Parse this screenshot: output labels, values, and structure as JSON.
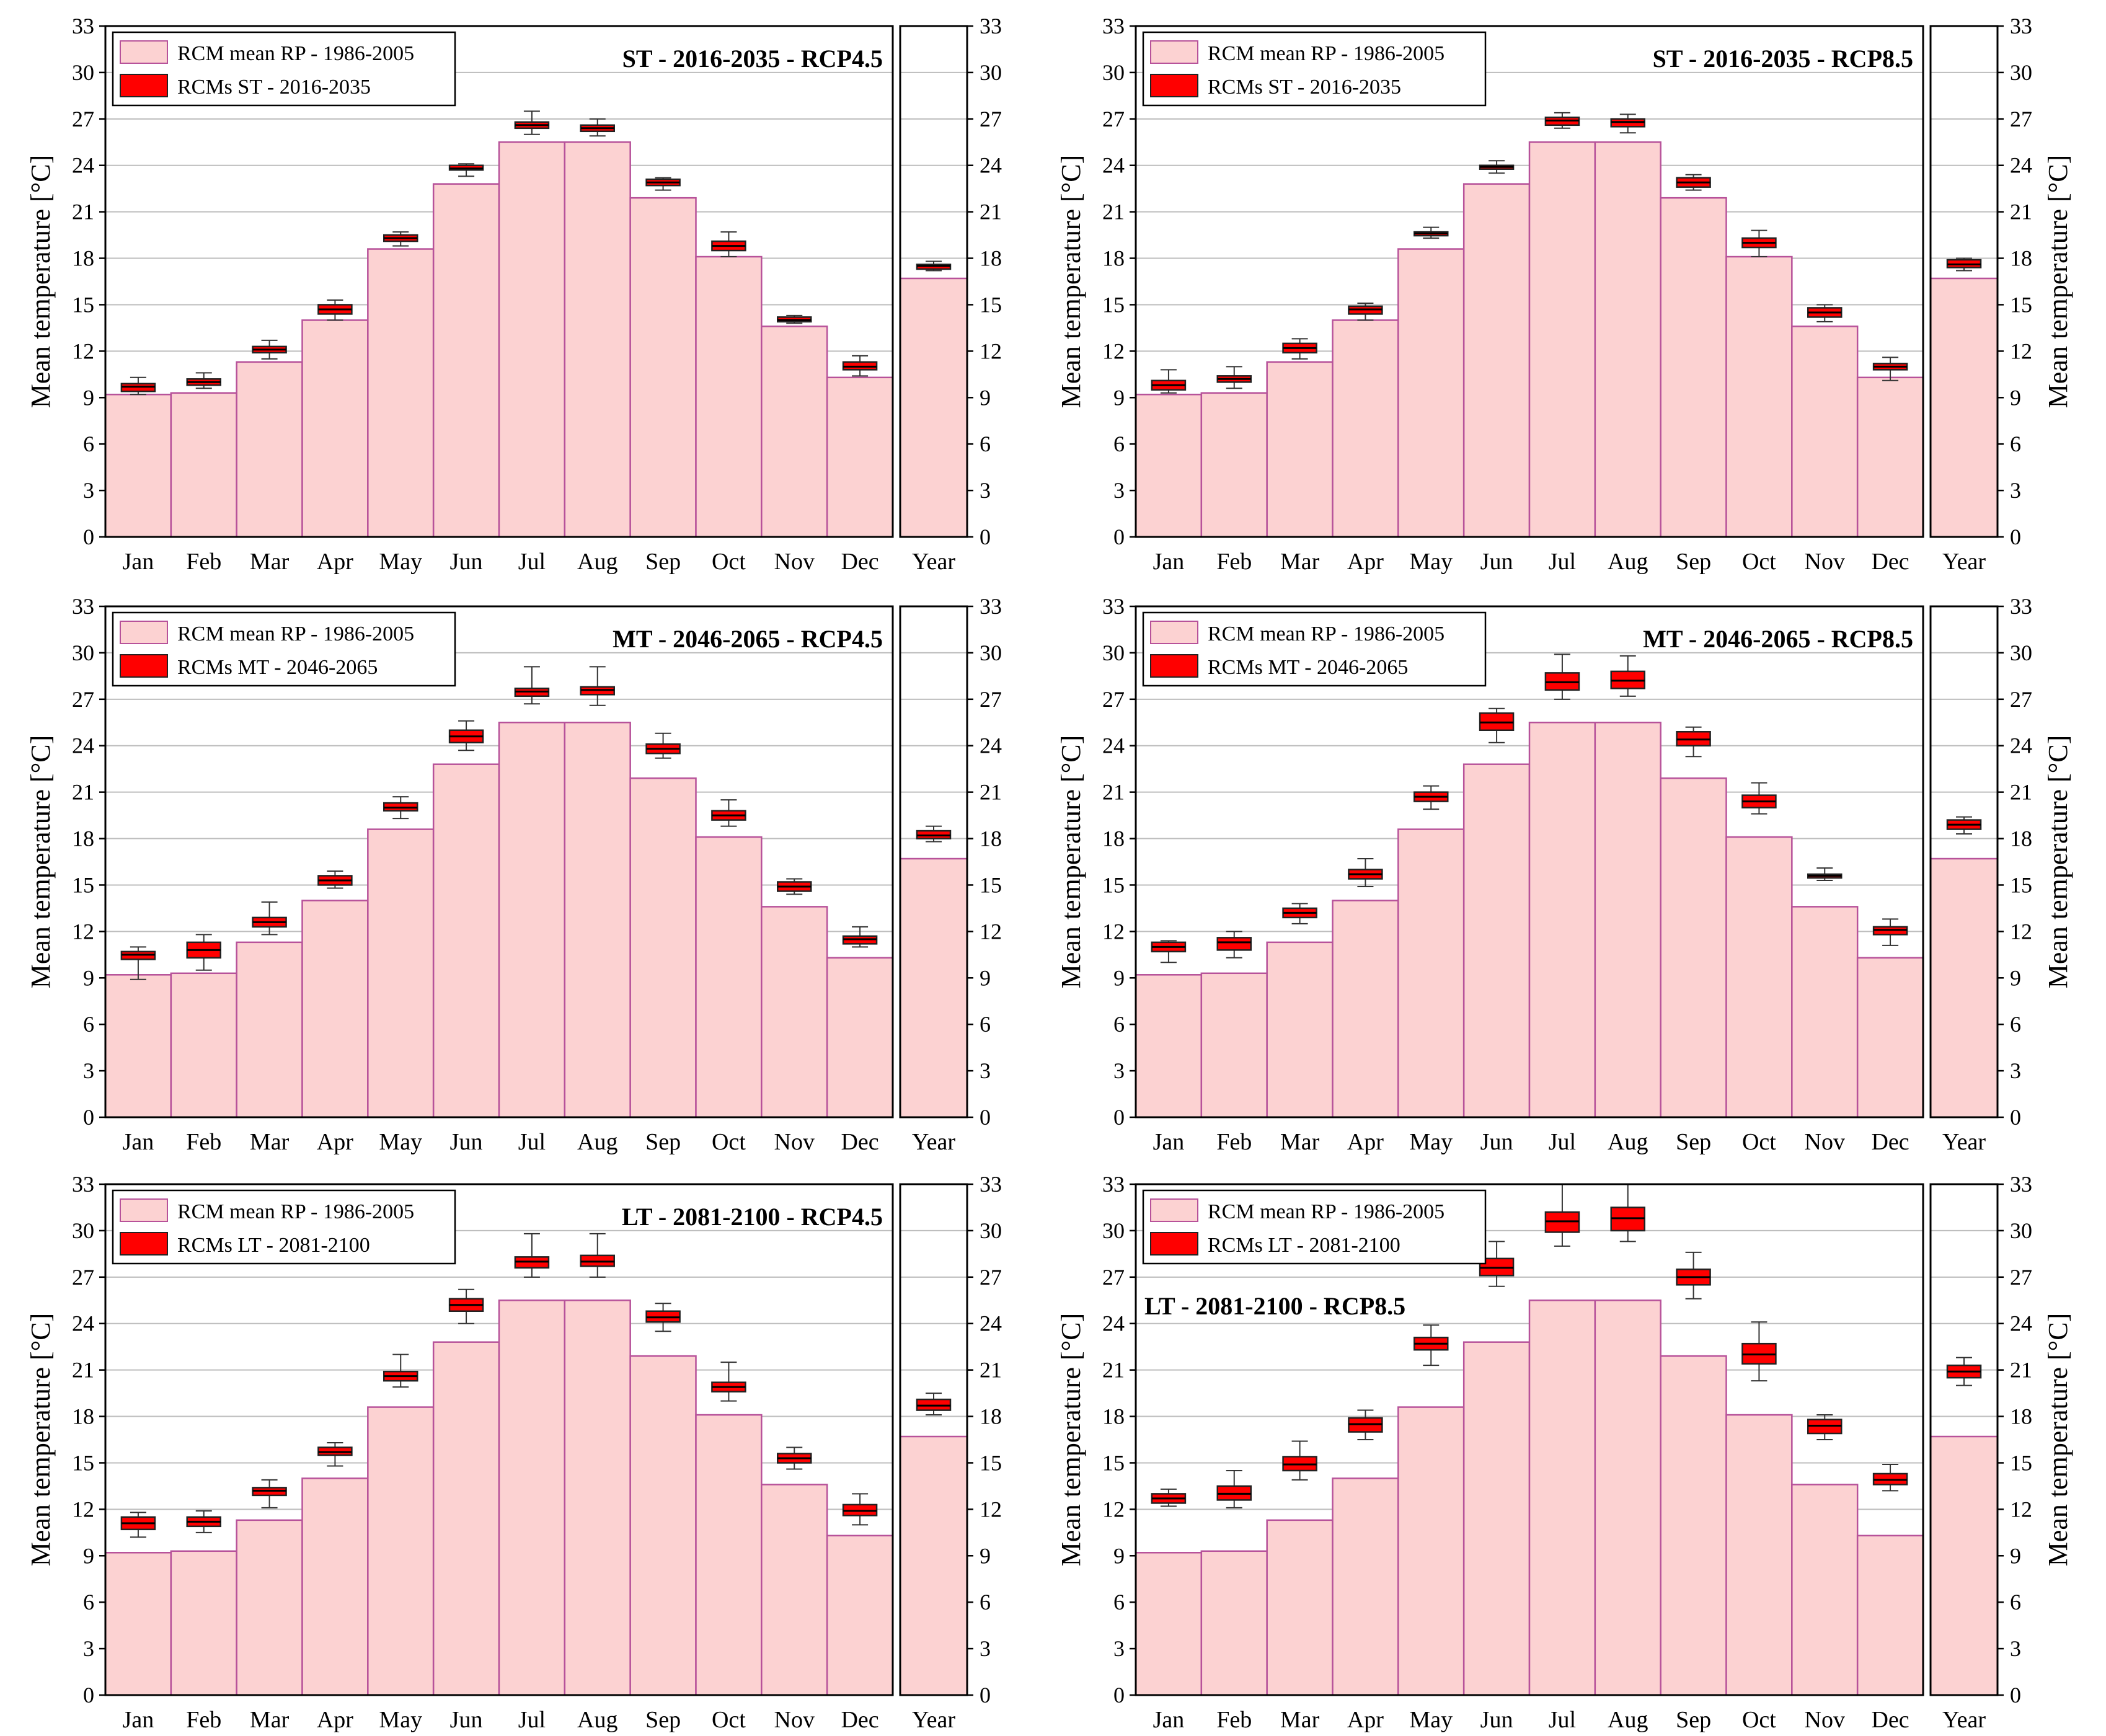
{
  "months": [
    "Jan",
    "Feb",
    "Mar",
    "Apr",
    "May",
    "Jun",
    "Jul",
    "Aug",
    "Sep",
    "Oct",
    "Nov",
    "Dec"
  ],
  "year_label": "Year",
  "ylabel": "Mean temperature [°C]",
  "yticks": [
    0,
    3,
    6,
    9,
    12,
    15,
    18,
    21,
    24,
    27,
    30,
    33
  ],
  "ylim": [
    0,
    33
  ],
  "colors": {
    "baseline_fill": "#fcd2d2",
    "baseline_edge": "#b7529a",
    "box_fill": "#ff0000",
    "grid": "#bdbdbd"
  },
  "baseline": {
    "legend": "RCM mean RP - 1986-2005",
    "monthly": [
      9.2,
      9.3,
      11.3,
      14.0,
      18.6,
      22.8,
      25.5,
      25.5,
      21.9,
      18.1,
      13.6,
      10.3
    ],
    "year": 16.7
  },
  "chart_data": [
    {
      "type": "bar",
      "title": "ST - 2016-2035 - RCP4.5",
      "legend_box": "RCMs ST - 2016-2035",
      "categories": [
        "Jan",
        "Feb",
        "Mar",
        "Apr",
        "May",
        "Jun",
        "Jul",
        "Aug",
        "Sep",
        "Oct",
        "Nov",
        "Dec",
        "Year"
      ],
      "boxes": [
        [
          9.2,
          9.4,
          9.7,
          9.9,
          10.3
        ],
        [
          9.6,
          9.8,
          10.0,
          10.2,
          10.6
        ],
        [
          11.5,
          11.9,
          12.1,
          12.3,
          12.7
        ],
        [
          14.0,
          14.4,
          14.7,
          15.0,
          15.3
        ],
        [
          18.8,
          19.1,
          19.3,
          19.5,
          19.7
        ],
        [
          23.3,
          23.7,
          23.8,
          24.0,
          24.1
        ],
        [
          26.0,
          26.4,
          26.6,
          26.8,
          27.5
        ],
        [
          25.9,
          26.2,
          26.4,
          26.6,
          27.0
        ],
        [
          22.4,
          22.7,
          22.9,
          23.1,
          23.2
        ],
        [
          18.1,
          18.5,
          18.8,
          19.1,
          19.7
        ],
        [
          13.8,
          13.9,
          14.0,
          14.2,
          14.3
        ],
        [
          10.4,
          10.8,
          11.0,
          11.3,
          11.7
        ],
        [
          17.2,
          17.3,
          17.5,
          17.6,
          17.8
        ]
      ]
    },
    {
      "type": "bar",
      "title": "ST - 2016-2035 - RCP8.5",
      "legend_box": "RCMs ST - 2016-2035",
      "categories": [
        "Jan",
        "Feb",
        "Mar",
        "Apr",
        "May",
        "Jun",
        "Jul",
        "Aug",
        "Sep",
        "Oct",
        "Nov",
        "Dec",
        "Year"
      ],
      "boxes": [
        [
          9.3,
          9.5,
          9.8,
          10.1,
          10.8
        ],
        [
          9.6,
          10.0,
          10.2,
          10.4,
          11.0
        ],
        [
          11.5,
          11.9,
          12.2,
          12.5,
          12.8
        ],
        [
          14.0,
          14.4,
          14.7,
          14.9,
          15.1
        ],
        [
          19.3,
          19.5,
          19.6,
          19.7,
          20.0
        ],
        [
          23.5,
          23.8,
          23.9,
          24.0,
          24.3
        ],
        [
          26.4,
          26.6,
          26.9,
          27.1,
          27.4
        ],
        [
          26.1,
          26.5,
          26.8,
          27.0,
          27.3
        ],
        [
          22.4,
          22.6,
          22.9,
          23.2,
          23.4
        ],
        [
          18.1,
          18.7,
          19.0,
          19.3,
          19.8
        ],
        [
          13.9,
          14.2,
          14.5,
          14.8,
          15.0
        ],
        [
          10.1,
          10.8,
          11.0,
          11.2,
          11.6
        ],
        [
          17.2,
          17.4,
          17.6,
          17.9,
          18.0
        ]
      ]
    },
    {
      "type": "bar",
      "title": "MT - 2046-2065 - RCP4.5",
      "legend_box": "RCMs MT - 2046-2065",
      "categories": [
        "Jan",
        "Feb",
        "Mar",
        "Apr",
        "May",
        "Jun",
        "Jul",
        "Aug",
        "Sep",
        "Oct",
        "Nov",
        "Dec",
        "Year"
      ],
      "boxes": [
        [
          8.9,
          10.2,
          10.5,
          10.7,
          11.0
        ],
        [
          9.5,
          10.3,
          10.8,
          11.3,
          11.8
        ],
        [
          11.8,
          12.3,
          12.6,
          12.9,
          13.9
        ],
        [
          14.8,
          15.0,
          15.3,
          15.6,
          15.9
        ],
        [
          19.3,
          19.8,
          20.0,
          20.3,
          20.7
        ],
        [
          23.7,
          24.2,
          24.6,
          25.0,
          25.6
        ],
        [
          26.7,
          27.2,
          27.5,
          27.7,
          29.1
        ],
        [
          26.6,
          27.3,
          27.6,
          27.8,
          29.1
        ],
        [
          23.2,
          23.5,
          23.8,
          24.1,
          24.8
        ],
        [
          18.8,
          19.2,
          19.5,
          19.8,
          20.5
        ],
        [
          14.4,
          14.6,
          14.9,
          15.2,
          15.4
        ],
        [
          11.0,
          11.2,
          11.5,
          11.7,
          12.3
        ],
        [
          17.8,
          18.0,
          18.2,
          18.5,
          18.8
        ]
      ]
    },
    {
      "type": "bar",
      "title": "MT - 2046-2065 - RCP8.5",
      "legend_box": "RCMs MT - 2046-2065",
      "categories": [
        "Jan",
        "Feb",
        "Mar",
        "Apr",
        "May",
        "Jun",
        "Jul",
        "Aug",
        "Sep",
        "Oct",
        "Nov",
        "Dec",
        "Year"
      ],
      "boxes": [
        [
          10.0,
          10.7,
          11.0,
          11.3,
          11.4
        ],
        [
          10.3,
          10.8,
          11.3,
          11.6,
          12.0
        ],
        [
          12.5,
          12.9,
          13.2,
          13.5,
          13.8
        ],
        [
          14.9,
          15.4,
          15.7,
          16.0,
          16.7
        ],
        [
          19.9,
          20.4,
          20.7,
          21.0,
          21.4
        ],
        [
          24.2,
          25.0,
          25.5,
          26.1,
          26.4
        ],
        [
          27.0,
          27.6,
          28.1,
          28.7,
          29.9
        ],
        [
          27.2,
          27.7,
          28.2,
          28.8,
          29.8
        ],
        [
          23.3,
          24.0,
          24.4,
          24.9,
          25.2
        ],
        [
          19.6,
          20.0,
          20.4,
          20.8,
          21.6
        ],
        [
          15.3,
          15.5,
          15.6,
          15.7,
          16.1
        ],
        [
          11.1,
          11.8,
          12.1,
          12.3,
          12.8
        ],
        [
          18.3,
          18.6,
          18.9,
          19.2,
          19.4
        ]
      ]
    },
    {
      "type": "bar",
      "title": "LT - 2081-2100 - RCP4.5",
      "legend_box": "RCMs LT - 2081-2100",
      "categories": [
        "Jan",
        "Feb",
        "Mar",
        "Apr",
        "May",
        "Jun",
        "Jul",
        "Aug",
        "Sep",
        "Oct",
        "Nov",
        "Dec",
        "Year"
      ],
      "boxes": [
        [
          10.2,
          10.7,
          11.1,
          11.5,
          11.8
        ],
        [
          10.5,
          10.9,
          11.2,
          11.5,
          11.9
        ],
        [
          12.1,
          12.9,
          13.2,
          13.4,
          13.9
        ],
        [
          14.8,
          15.5,
          15.7,
          16.0,
          16.3
        ],
        [
          19.9,
          20.3,
          20.6,
          20.9,
          22.0
        ],
        [
          24.0,
          24.8,
          25.2,
          25.6,
          26.2
        ],
        [
          27.0,
          27.6,
          28.0,
          28.3,
          29.8
        ],
        [
          27.0,
          27.7,
          28.0,
          28.4,
          29.8
        ],
        [
          23.5,
          24.1,
          24.4,
          24.8,
          25.3
        ],
        [
          19.0,
          19.6,
          19.9,
          20.2,
          21.5
        ],
        [
          14.6,
          15.0,
          15.3,
          15.6,
          16.0
        ],
        [
          11.0,
          11.6,
          11.9,
          12.3,
          13.0
        ],
        [
          18.1,
          18.4,
          18.7,
          19.1,
          19.5
        ]
      ]
    },
    {
      "type": "bar",
      "title": "LT - 2081-2100 - RCP8.5",
      "legend_box": "RCMs LT - 2081-2100",
      "categories": [
        "Jan",
        "Feb",
        "Mar",
        "Apr",
        "May",
        "Jun",
        "Jul",
        "Aug",
        "Sep",
        "Oct",
        "Nov",
        "Dec",
        "Year"
      ],
      "boxes": [
        [
          12.2,
          12.4,
          12.7,
          13.0,
          13.3
        ],
        [
          12.1,
          12.6,
          13.0,
          13.5,
          14.5
        ],
        [
          13.9,
          14.5,
          14.9,
          15.4,
          16.4
        ],
        [
          16.5,
          17.0,
          17.5,
          17.9,
          18.4
        ],
        [
          21.3,
          22.3,
          22.7,
          23.1,
          23.9
        ],
        [
          26.4,
          27.1,
          27.6,
          28.2,
          29.3
        ],
        [
          29.0,
          29.9,
          30.6,
          31.2,
          33.0
        ],
        [
          29.3,
          30.0,
          30.8,
          31.5,
          33.0
        ],
        [
          25.6,
          26.5,
          27.0,
          27.5,
          28.6
        ],
        [
          20.3,
          21.4,
          22.0,
          22.7,
          24.1
        ],
        [
          16.5,
          16.9,
          17.4,
          17.8,
          18.1
        ],
        [
          13.2,
          13.6,
          13.9,
          14.3,
          14.9
        ],
        [
          20.0,
          20.5,
          20.9,
          21.3,
          21.8
        ]
      ]
    }
  ]
}
